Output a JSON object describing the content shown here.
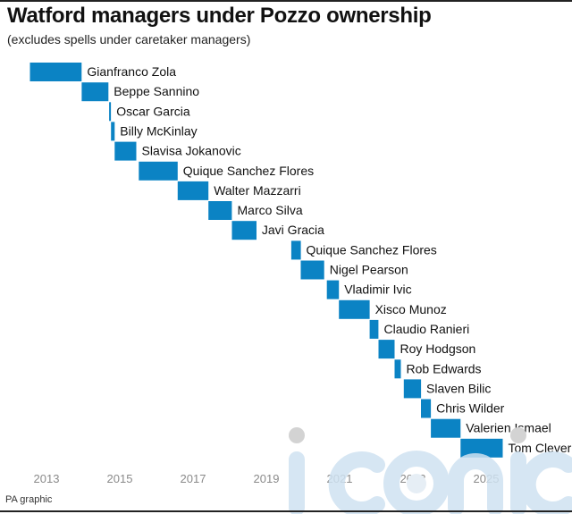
{
  "title": "Watford managers under Pozzo ownership",
  "subtitle": "(excludes spells under caretaker managers)",
  "credit": "PA graphic",
  "colors": {
    "bar": "#0b83c4",
    "axis_text": "#8a8a8a",
    "rule": "#222222"
  },
  "chart_data": {
    "type": "bar",
    "orientation": "horizontal-timeline",
    "xlim": [
      2012.5,
      2025.7
    ],
    "x_ticks": [
      "2013",
      "2015",
      "2017",
      "2019",
      "2021",
      "2023",
      "2025"
    ],
    "categories": [
      "Gianfranco Zola",
      "Beppe Sannino",
      "Oscar Garcia",
      "Billy McKinlay",
      "Slavisa Jokanovic",
      "Quique Sanchez Flores",
      "Walter Mazzarri",
      "Marco Silva",
      "Javi Gracia",
      "Quique Sanchez Flores",
      "Nigel Pearson",
      "Vladimir Ivic",
      "Xisco Munoz",
      "Claudio Ranieri",
      "Roy Hodgson",
      "Rob Edwards",
      "Slaven Bilic",
      "Chris Wilder",
      "Valerien Ismael",
      "Tom Cleverley"
    ],
    "start": [
      2012.55,
      2013.96,
      2014.71,
      2014.76,
      2014.86,
      2015.52,
      2016.58,
      2017.42,
      2018.06,
      2019.68,
      2019.94,
      2020.65,
      2020.98,
      2021.82,
      2022.06,
      2022.5,
      2022.75,
      2023.22,
      2023.49,
      2024.3
    ],
    "end": [
      2013.96,
      2014.69,
      2014.76,
      2014.86,
      2015.45,
      2016.58,
      2017.42,
      2018.06,
      2018.73,
      2019.94,
      2020.58,
      2020.98,
      2021.82,
      2022.06,
      2022.5,
      2022.67,
      2023.22,
      2023.49,
      2024.3,
      2025.45
    ],
    "grid": false,
    "legend": "none",
    "xlabel": "",
    "ylabel": ""
  }
}
